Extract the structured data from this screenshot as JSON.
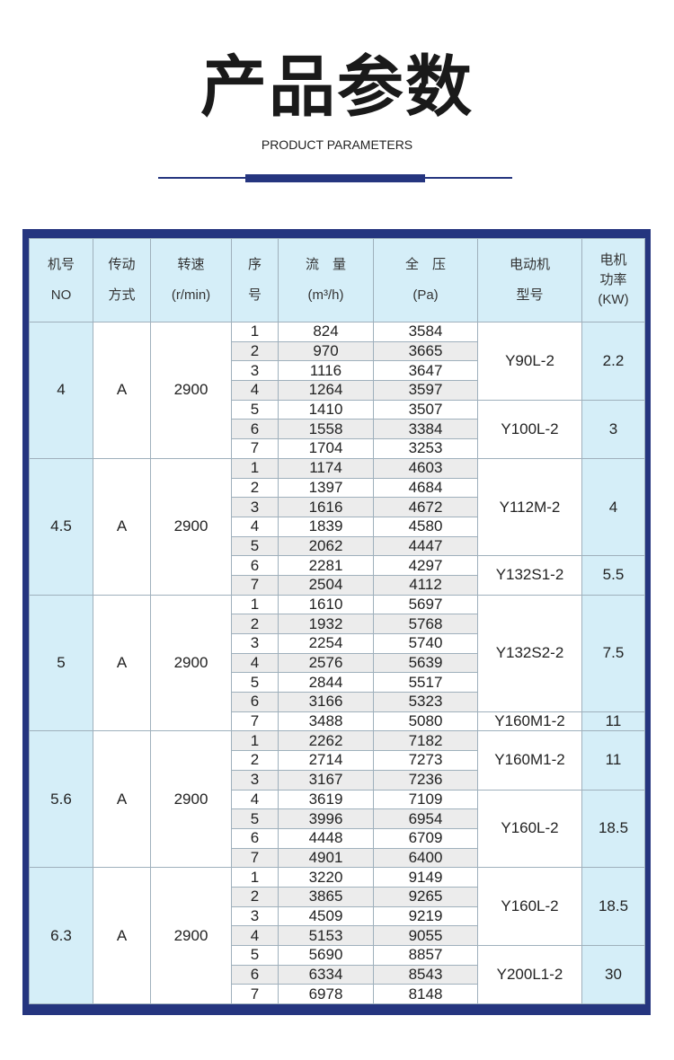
{
  "header": {
    "title": "产品参数",
    "subtitle": "PRODUCT PARAMETERS"
  },
  "colors": {
    "accent": "#25357f",
    "header_bg": "#d5eef8",
    "stripe": "#ececec"
  },
  "table": {
    "columns": [
      [
        "机号",
        "NO"
      ],
      [
        "传动",
        "方式"
      ],
      [
        "转速",
        "(r/min)"
      ],
      [
        "序",
        "号"
      ],
      [
        "流　量",
        "(m³/h)"
      ],
      [
        "全　压",
        "(Pa)"
      ],
      [
        "电动机",
        "型号"
      ],
      [
        "电机",
        "功率",
        "(KW)"
      ]
    ],
    "groups": [
      {
        "no": "4",
        "drive": "A",
        "speed": "2900",
        "rows": [
          [
            "1",
            "824",
            "3584"
          ],
          [
            "2",
            "970",
            "3665"
          ],
          [
            "3",
            "1116",
            "3647"
          ],
          [
            "4",
            "1264",
            "3597"
          ],
          [
            "5",
            "1410",
            "3507"
          ],
          [
            "6",
            "1558",
            "3384"
          ],
          [
            "7",
            "1704",
            "3253"
          ]
        ],
        "motors": [
          {
            "model": "Y90L-2",
            "power": "2.2",
            "span": 4
          },
          {
            "model": "Y100L-2",
            "power": "3",
            "span": 3
          }
        ]
      },
      {
        "no": "4.5",
        "drive": "A",
        "speed": "2900",
        "rows": [
          [
            "1",
            "1174",
            "4603"
          ],
          [
            "2",
            "1397",
            "4684"
          ],
          [
            "3",
            "1616",
            "4672"
          ],
          [
            "4",
            "1839",
            "4580"
          ],
          [
            "5",
            "2062",
            "4447"
          ],
          [
            "6",
            "2281",
            "4297"
          ],
          [
            "7",
            "2504",
            "4112"
          ]
        ],
        "motors": [
          {
            "model": "Y112M-2",
            "power": "4",
            "span": 5
          },
          {
            "model": "Y132S1-2",
            "power": "5.5",
            "span": 2
          }
        ]
      },
      {
        "no": "5",
        "drive": "A",
        "speed": "2900",
        "rows": [
          [
            "1",
            "1610",
            "5697"
          ],
          [
            "2",
            "1932",
            "5768"
          ],
          [
            "3",
            "2254",
            "5740"
          ],
          [
            "4",
            "2576",
            "5639"
          ],
          [
            "5",
            "2844",
            "5517"
          ],
          [
            "6",
            "3166",
            "5323"
          ],
          [
            "7",
            "3488",
            "5080"
          ]
        ],
        "motors": [
          {
            "model": "Y132S2-2",
            "power": "7.5",
            "span": 6
          },
          {
            "model": "Y160M1-2",
            "power": "11",
            "span": 1
          }
        ]
      },
      {
        "no": "5.6",
        "drive": "A",
        "speed": "2900",
        "rows": [
          [
            "1",
            "2262",
            "7182"
          ],
          [
            "2",
            "2714",
            "7273"
          ],
          [
            "3",
            "3167",
            "7236"
          ],
          [
            "4",
            "3619",
            "7109"
          ],
          [
            "5",
            "3996",
            "6954"
          ],
          [
            "6",
            "4448",
            "6709"
          ],
          [
            "7",
            "4901",
            "6400"
          ]
        ],
        "motors": [
          {
            "model": "Y160M1-2",
            "power": "11",
            "span": 3
          },
          {
            "model": "Y160L-2",
            "power": "18.5",
            "span": 4
          }
        ]
      },
      {
        "no": "6.3",
        "drive": "A",
        "speed": "2900",
        "rows": [
          [
            "1",
            "3220",
            "9149"
          ],
          [
            "2",
            "3865",
            "9265"
          ],
          [
            "3",
            "4509",
            "9219"
          ],
          [
            "4",
            "5153",
            "9055"
          ],
          [
            "5",
            "5690",
            "8857"
          ],
          [
            "6",
            "6334",
            "8543"
          ],
          [
            "7",
            "6978",
            "8148"
          ]
        ],
        "motors": [
          {
            "model": "Y160L-2",
            "power": "18.5",
            "span": 4
          },
          {
            "model": "Y200L1-2",
            "power": "30",
            "span": 3
          }
        ]
      }
    ]
  }
}
